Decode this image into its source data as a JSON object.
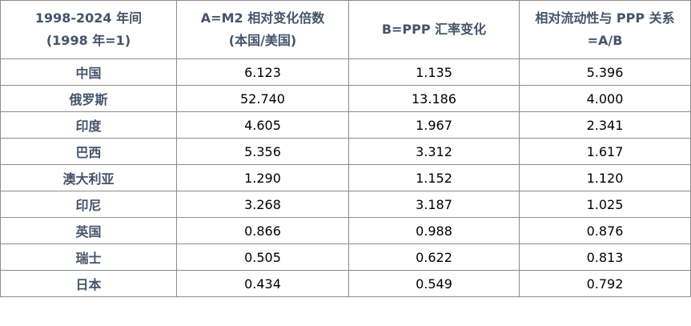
{
  "table": {
    "header": [
      [
        "1998-2024 年间",
        "(1998 年=1)"
      ],
      [
        "A=M2 相对变化倍数",
        "(本国/美国)"
      ],
      [
        "B=PPP 汇率变化"
      ],
      [
        "相对流动性与 PPP 关系",
        "=A/B"
      ]
    ],
    "rows": [
      [
        "中国",
        "6.123",
        "1.135",
        "5.396"
      ],
      [
        "俄罗斯",
        "52.740",
        "13.186",
        "4.000"
      ],
      [
        "印度",
        "4.605",
        "1.967",
        "2.341"
      ],
      [
        "巴西",
        "5.356",
        "3.312",
        "1.617"
      ],
      [
        "澳大利亚",
        "1.290",
        "1.152",
        "1.120"
      ],
      [
        "印尼",
        "3.268",
        "3.187",
        "1.025"
      ],
      [
        "英国",
        "0.866",
        "0.988",
        "0.876"
      ],
      [
        "瑞士",
        "0.505",
        "0.622",
        "0.813"
      ],
      [
        "日本",
        "0.434",
        "0.549",
        "0.792"
      ]
    ]
  }
}
